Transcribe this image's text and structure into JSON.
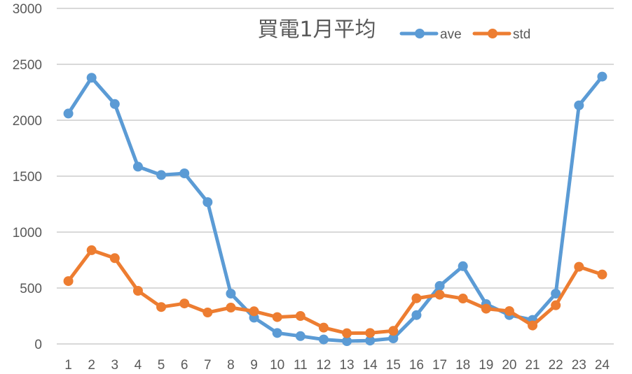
{
  "chart_data": {
    "type": "line",
    "title": "買電1月平均",
    "xlabel": "",
    "ylabel": "",
    "categories": [
      "1",
      "2",
      "3",
      "4",
      "5",
      "6",
      "7",
      "8",
      "9",
      "10",
      "11",
      "12",
      "13",
      "14",
      "15",
      "16",
      "17",
      "18",
      "19",
      "20",
      "21",
      "22",
      "23",
      "24"
    ],
    "ylim": [
      0,
      3000
    ],
    "yticks": [
      0,
      500,
      1000,
      1500,
      2000,
      2500,
      3000
    ],
    "grid": true,
    "legend_position": "top-right",
    "series": [
      {
        "name": "ave",
        "color": "#5B9BD5",
        "values": [
          2060,
          2380,
          2145,
          1585,
          1510,
          1525,
          1268,
          450,
          235,
          98,
          70,
          40,
          25,
          30,
          50,
          258,
          519,
          695,
          356,
          258,
          215,
          450,
          2133,
          2390
        ]
      },
      {
        "name": "std",
        "color": "#ED7D31",
        "values": [
          562,
          838,
          767,
          475,
          330,
          362,
          281,
          325,
          292,
          240,
          250,
          146,
          96,
          98,
          117,
          408,
          440,
          406,
          315,
          294,
          165,
          346,
          690,
          621
        ]
      }
    ]
  },
  "colors": {
    "text": "#595959",
    "grid": "#d9d9d9"
  }
}
